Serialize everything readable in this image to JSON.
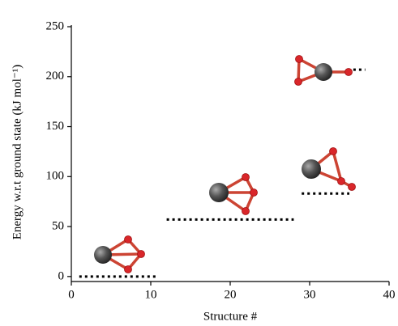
{
  "chart_data": {
    "type": "energy-levels",
    "x_label": "Structure #",
    "y_label": "Energy w.r.t ground state (kJ mol⁻¹)",
    "color": "#000000",
    "levels": [
      {
        "x": [
          1,
          11
        ],
        "value": 0
      },
      {
        "x": [
          12,
          28
        ],
        "value": 57
      },
      {
        "x": [
          29,
          35
        ],
        "value": 83
      },
      {
        "x": [
          35.5,
          37
        ],
        "value": 207
      }
    ],
    "xlim": [
      0,
      40
    ],
    "xticks": [
      0,
      10,
      20,
      30,
      40
    ],
    "ylim": [
      -5,
      250
    ],
    "yticks": [
      0,
      50,
      100,
      150,
      200,
      250
    ]
  }
}
